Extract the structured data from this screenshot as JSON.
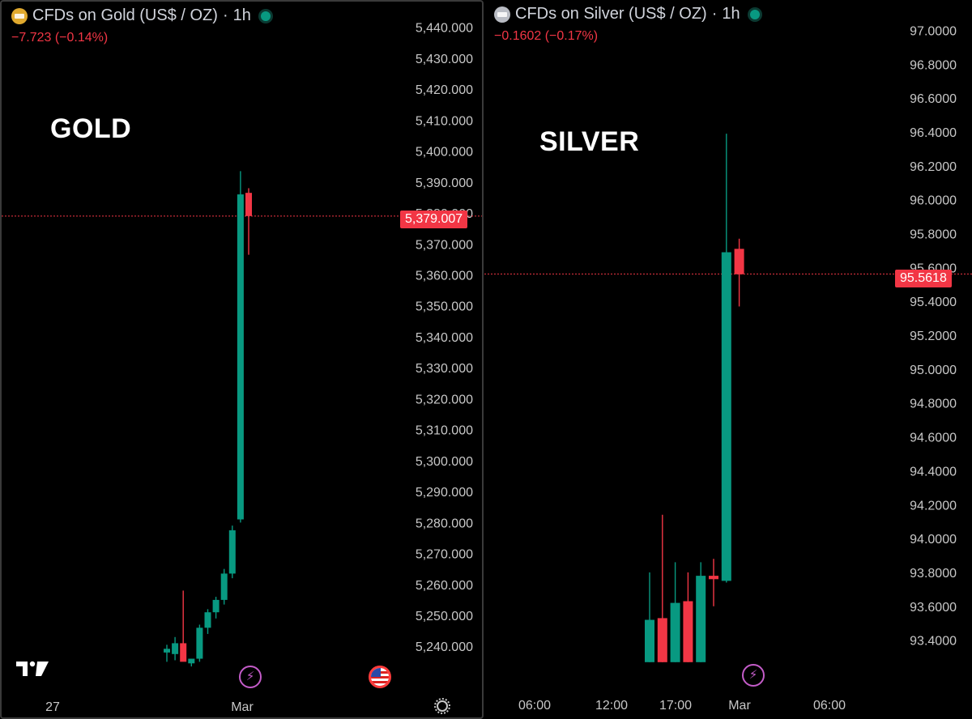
{
  "panels": [
    {
      "id": "gold",
      "header": {
        "title": "CFDs on Gold (US$ / OZ)",
        "interval": "1h",
        "change": "−7.723 (−0.14%)"
      },
      "overlay_label": "GOLD",
      "last_price_label": "5,379.007",
      "x_labels": [
        "27",
        "Mar"
      ],
      "colors": {
        "up": "#089981",
        "down": "#f23645"
      }
    },
    {
      "id": "silver",
      "header": {
        "title": "CFDs on Silver (US$ / OZ)",
        "interval": "1h",
        "change": "−0.1602 (−0.17%)"
      },
      "overlay_label": "SILVER",
      "last_price_label": "95.5618",
      "x_labels": [
        "06:00",
        "12:00",
        "17:00",
        "Mar",
        "06:00"
      ],
      "colors": {
        "up": "#089981",
        "down": "#f23645"
      }
    }
  ],
  "chart_data": [
    {
      "type": "candlestick",
      "title": "CFDs on Gold (US$ / OZ) · 1h",
      "ylim": [
        5233,
        5442
      ],
      "yticks": [
        5240,
        5250,
        5260,
        5270,
        5280,
        5290,
        5300,
        5310,
        5320,
        5330,
        5340,
        5350,
        5360,
        5370,
        5380,
        5390,
        5400,
        5410,
        5420,
        5430,
        5440
      ],
      "ytick_labels": [
        "5,240.000",
        "5,250.000",
        "5,260.000",
        "5,270.000",
        "5,280.000",
        "5,290.000",
        "5,300.000",
        "5,310.000",
        "5,320.000",
        "5,330.000",
        "5,340.000",
        "5,350.000",
        "5,360.000",
        "5,370.000",
        "5,380.000",
        "5,390.000",
        "5,400.000",
        "5,410.000",
        "5,420.000",
        "5,430.000",
        "5,440.000"
      ],
      "last_price": 5379.007,
      "x_axis_labels": [
        "27",
        "Mar"
      ],
      "candles": [
        {
          "o": 5238.0,
          "h": 5240.5,
          "l": 5235.0,
          "c": 5239.2
        },
        {
          "o": 5237.5,
          "h": 5243.0,
          "l": 5235.5,
          "c": 5241.0
        },
        {
          "o": 5241.0,
          "h": 5258.0,
          "l": 5236.0,
          "c": 5235.0
        },
        {
          "o": 5234.5,
          "h": 5236.0,
          "l": 5233.5,
          "c": 5236.0
        },
        {
          "o": 5236.0,
          "h": 5247.0,
          "l": 5235.0,
          "c": 5246.0
        },
        {
          "o": 5246.0,
          "h": 5252.0,
          "l": 5244.0,
          "c": 5251.0
        },
        {
          "o": 5251.0,
          "h": 5256.0,
          "l": 5249.0,
          "c": 5255.0
        },
        {
          "o": 5255.0,
          "h": 5265.0,
          "l": 5253.5,
          "c": 5263.5
        },
        {
          "o": 5263.5,
          "h": 5279.0,
          "l": 5262.0,
          "c": 5277.5
        },
        {
          "o": 5281.0,
          "h": 5393.5,
          "l": 5280.0,
          "c": 5386.0
        },
        {
          "o": 5386.5,
          "h": 5388.0,
          "l": 5366.5,
          "c": 5379.0
        }
      ]
    },
    {
      "type": "candlestick",
      "title": "CFDs on Silver (US$ / OZ) · 1h",
      "ylim": [
        93.25,
        97.05
      ],
      "yticks": [
        93.4,
        93.6,
        93.8,
        94.0,
        94.2,
        94.4,
        94.6,
        94.8,
        95.0,
        95.2,
        95.4,
        95.6,
        95.8,
        96.0,
        96.2,
        96.4,
        96.6,
        96.8,
        97.0
      ],
      "ytick_labels": [
        "93.4000",
        "93.6000",
        "93.8000",
        "94.0000",
        "94.2000",
        "94.4000",
        "94.6000",
        "94.8000",
        "95.0000",
        "95.2000",
        "95.4000",
        "95.6000",
        "95.8000",
        "96.0000",
        "96.2000",
        "96.4000",
        "96.6000",
        "96.8000",
        "97.0000"
      ],
      "last_price": 95.5618,
      "x_axis_labels": [
        "06:00",
        "12:00",
        "17:00",
        "Mar",
        "06:00"
      ],
      "candles": [
        {
          "o": 93.27,
          "h": 93.8,
          "l": 93.27,
          "c": 93.52
        },
        {
          "o": 93.53,
          "h": 94.14,
          "l": 93.27,
          "c": 93.27
        },
        {
          "o": 93.27,
          "h": 93.86,
          "l": 93.27,
          "c": 93.62
        },
        {
          "o": 93.63,
          "h": 93.8,
          "l": 93.27,
          "c": 93.27
        },
        {
          "o": 93.27,
          "h": 93.86,
          "l": 93.27,
          "c": 93.78
        },
        {
          "o": 93.78,
          "h": 93.88,
          "l": 93.6,
          "c": 93.76
        },
        {
          "o": 93.75,
          "h": 96.39,
          "l": 93.74,
          "c": 95.69
        },
        {
          "o": 95.71,
          "h": 95.77,
          "l": 95.37,
          "c": 95.56
        }
      ]
    }
  ]
}
